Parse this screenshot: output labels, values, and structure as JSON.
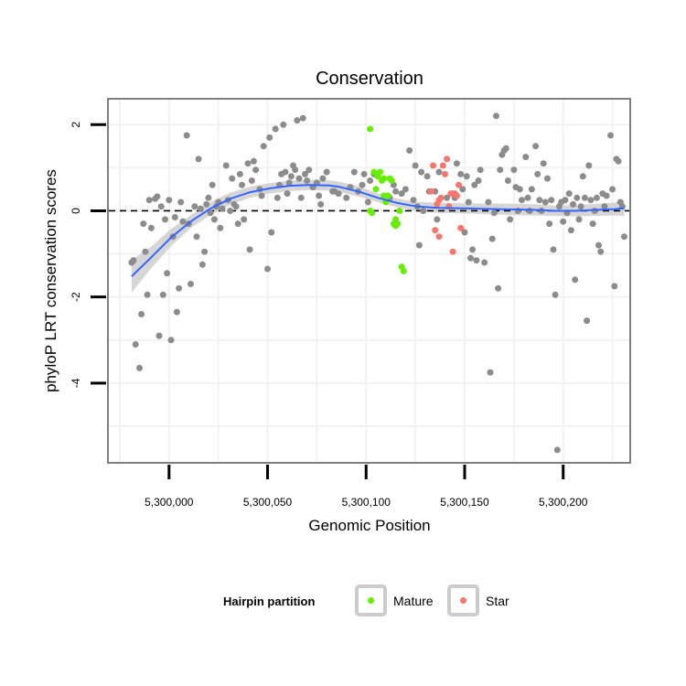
{
  "chart_data": {
    "type": "scatter",
    "title": "Conservation",
    "xlabel": "Genomic Position",
    "ylabel": "phyloP LRT conservation scores",
    "xlim": [
      5299969,
      5300234
    ],
    "ylim": [
      -5.85,
      2.6
    ],
    "x_ticks": [
      {
        "value": 5300000,
        "label": "5,300,000"
      },
      {
        "value": 5300050,
        "label": "5,300,050"
      },
      {
        "value": 5300100,
        "label": "5,300,100"
      },
      {
        "value": 5300150,
        "label": "5,300,150"
      },
      {
        "value": 5300200,
        "label": "5,300,200"
      }
    ],
    "y_ticks": [
      {
        "value": 2,
        "label": "2"
      },
      {
        "value": 0,
        "label": "0"
      },
      {
        "value": -2,
        "label": "-2"
      },
      {
        "value": -4,
        "label": "-4"
      }
    ],
    "reference_line": {
      "y": 0,
      "style": "dashed"
    },
    "colors": {
      "other": "#8c8c8c",
      "mature": "#66ee00",
      "star": "#f8766d",
      "smooth": "#3366ff",
      "ribbon": "#c8c8c8",
      "panel_border": "#7f7f7f",
      "grid": "#f2f2f2"
    },
    "legend": {
      "title": "Hairpin partition",
      "position": "bottom",
      "entries": [
        {
          "key": "mature",
          "label": "Mature"
        },
        {
          "key": "star",
          "label": "Star"
        }
      ]
    },
    "series": [
      {
        "name": "Other",
        "key": "other",
        "points": [
          [
            5299981,
            -1.2
          ],
          [
            5299982,
            -1.15
          ],
          [
            5299983,
            -3.1
          ],
          [
            5299985,
            -3.65
          ],
          [
            5299986,
            -2.4
          ],
          [
            5299987,
            -0.3
          ],
          [
            5299988,
            -0.95
          ],
          [
            5299989,
            -1.95
          ],
          [
            5299990,
            0.25
          ],
          [
            5299991,
            -0.4
          ],
          [
            5299993,
            0.28
          ],
          [
            5299994,
            0.33
          ],
          [
            5299995,
            -2.9
          ],
          [
            5299996,
            0.1
          ],
          [
            5299997,
            -1.95
          ],
          [
            5299998,
            -0.2
          ],
          [
            5299999,
            -1.45
          ],
          [
            5300000,
            0.25
          ],
          [
            5300001,
            -3.0
          ],
          [
            5300002,
            -0.6
          ],
          [
            5300003,
            -0.15
          ],
          [
            5300004,
            -2.35
          ],
          [
            5300005,
            -1.8
          ],
          [
            5300006,
            0.2
          ],
          [
            5300007,
            -0.25
          ],
          [
            5300009,
            1.75
          ],
          [
            5300010,
            -0.3
          ],
          [
            5300011,
            -1.7
          ],
          [
            5300013,
            0.1
          ],
          [
            5300014,
            -0.6
          ],
          [
            5300015,
            1.2
          ],
          [
            5300016,
            0.05
          ],
          [
            5300017,
            -1.25
          ],
          [
            5300018,
            -0.95
          ],
          [
            5300019,
            0.15
          ],
          [
            5300020,
            0.3
          ],
          [
            5300021,
            -0.05
          ],
          [
            5300022,
            0.6
          ],
          [
            5300023,
            -0.2
          ],
          [
            5300024,
            0.1
          ],
          [
            5300025,
            0.2
          ],
          [
            5300026,
            -0.4
          ],
          [
            5300027,
            0.05
          ],
          [
            5300029,
            1.05
          ],
          [
            5300030,
            0.25
          ],
          [
            5300031,
            0.0
          ],
          [
            5300032,
            0.75
          ],
          [
            5300033,
            0.15
          ],
          [
            5300034,
            0.1
          ],
          [
            5300035,
            -0.3
          ],
          [
            5300036,
            0.85
          ],
          [
            5300037,
            0.6
          ],
          [
            5300038,
            -0.2
          ],
          [
            5300040,
            1.1
          ],
          [
            5300041,
            -0.9
          ],
          [
            5300042,
            0.7
          ],
          [
            5300043,
            1.15
          ],
          [
            5300044,
            0.95
          ],
          [
            5300046,
            0.5
          ],
          [
            5300047,
            0.35
          ],
          [
            5300048,
            1.5
          ],
          [
            5300050,
            -1.35
          ],
          [
            5300051,
            1.7
          ],
          [
            5300052,
            -0.5
          ],
          [
            5300054,
            1.9
          ],
          [
            5300055,
            0.3
          ],
          [
            5300056,
            0.6
          ],
          [
            5300057,
            0.85
          ],
          [
            5300058,
            2.0
          ],
          [
            5300059,
            0.9
          ],
          [
            5300060,
            0.4
          ],
          [
            5300061,
            0.65
          ],
          [
            5300062,
            0.8
          ],
          [
            5300063,
            1.05
          ],
          [
            5300064,
            0.95
          ],
          [
            5300065,
            2.1
          ],
          [
            5300066,
            0.75
          ],
          [
            5300067,
            0.3
          ],
          [
            5300068,
            2.15
          ],
          [
            5300069,
            0.85
          ],
          [
            5300070,
            0.7
          ],
          [
            5300071,
            0.95
          ],
          [
            5300073,
            0.55
          ],
          [
            5300075,
            0.65
          ],
          [
            5300076,
            0.35
          ],
          [
            5300077,
            0.15
          ],
          [
            5300078,
            0.75
          ],
          [
            5300080,
            0.9
          ],
          [
            5300083,
            0.45
          ],
          [
            5300084,
            0.45
          ],
          [
            5300086,
            0.4
          ],
          [
            5300090,
            0.3
          ],
          [
            5300092,
            0.55
          ],
          [
            5300094,
            0.9
          ],
          [
            5300096,
            0.45
          ],
          [
            5300098,
            0.6
          ],
          [
            5300099,
            0.85
          ],
          [
            5300101,
            0.2
          ],
          [
            5300102,
            0.7
          ],
          [
            5300104,
            0.85
          ],
          [
            5300112,
            0.3
          ],
          [
            5300114,
            0.6
          ],
          [
            5300115,
            0.45
          ],
          [
            5300118,
            0.4
          ],
          [
            5300120,
            0.5
          ],
          [
            5300122,
            1.4
          ],
          [
            5300124,
            0.25
          ],
          [
            5300125,
            1.05
          ],
          [
            5300126,
            0.1
          ],
          [
            5300127,
            -0.8
          ],
          [
            5300128,
            0.9
          ],
          [
            5300129,
            0.0
          ],
          [
            5300131,
            0.8
          ],
          [
            5300132,
            0.45
          ],
          [
            5300135,
            0.45
          ],
          [
            5300136,
            -0.2
          ],
          [
            5300137,
            0.9
          ],
          [
            5300141,
            0.3
          ],
          [
            5300144,
            0.4
          ],
          [
            5300145,
            0.3
          ],
          [
            5300146,
            1.1
          ],
          [
            5300148,
            0.85
          ],
          [
            5300149,
            0.5
          ],
          [
            5300150,
            -0.5
          ],
          [
            5300151,
            0.8
          ],
          [
            5300152,
            0.2
          ],
          [
            5300153,
            -1.1
          ],
          [
            5300154,
            -0.9
          ],
          [
            5300155,
            0.6
          ],
          [
            5300156,
            -1.15
          ],
          [
            5300157,
            0.7
          ],
          [
            5300158,
            0.95
          ],
          [
            5300160,
            -1.2
          ],
          [
            5300162,
            0.2
          ],
          [
            5300163,
            -3.75
          ],
          [
            5300164,
            -0.65
          ],
          [
            5300165,
            -0.05
          ],
          [
            5300166,
            2.2
          ],
          [
            5300167,
            -1.8
          ],
          [
            5300168,
            0.95
          ],
          [
            5300169,
            1.3
          ],
          [
            5300170,
            1.4
          ],
          [
            5300171,
            1.45
          ],
          [
            5300172,
            0.7
          ],
          [
            5300173,
            -0.2
          ],
          [
            5300175,
            0.95
          ],
          [
            5300176,
            0.55
          ],
          [
            5300177,
            0.0
          ],
          [
            5300178,
            0.5
          ],
          [
            5300179,
            0.25
          ],
          [
            5300181,
            1.25
          ],
          [
            5300182,
            0.3
          ],
          [
            5300183,
            0.0
          ],
          [
            5300184,
            0.5
          ],
          [
            5300186,
            1.5
          ],
          [
            5300187,
            0.85
          ],
          [
            5300188,
            0.25
          ],
          [
            5300189,
            0.0
          ],
          [
            5300190,
            1.1
          ],
          [
            5300191,
            0.2
          ],
          [
            5300192,
            0.75
          ],
          [
            5300193,
            -0.3
          ],
          [
            5300194,
            0.25
          ],
          [
            5300195,
            -0.9
          ],
          [
            5300196,
            -1.95
          ],
          [
            5300197,
            -5.55
          ],
          [
            5300198,
            0.1
          ],
          [
            5300199,
            0.2
          ],
          [
            5300200,
            -0.25
          ],
          [
            5300201,
            0.25
          ],
          [
            5300202,
            -0.05
          ],
          [
            5300203,
            0.4
          ],
          [
            5300204,
            -0.45
          ],
          [
            5300205,
            0.15
          ],
          [
            5300206,
            -1.6
          ],
          [
            5300207,
            0.3
          ],
          [
            5300208,
            -0.2
          ],
          [
            5300209,
            0.1
          ],
          [
            5300210,
            0.8
          ],
          [
            5300211,
            0.3
          ],
          [
            5300212,
            -2.55
          ],
          [
            5300213,
            1.05
          ],
          [
            5300214,
            0.25
          ],
          [
            5300215,
            -0.3
          ],
          [
            5300216,
            0.0
          ],
          [
            5300217,
            0.3
          ],
          [
            5300218,
            -0.8
          ],
          [
            5300219,
            -0.95
          ],
          [
            5300220,
            0.4
          ],
          [
            5300221,
            0.1
          ],
          [
            5300222,
            0.35
          ],
          [
            5300224,
            1.75
          ],
          [
            5300225,
            0.5
          ],
          [
            5300226,
            -1.75
          ],
          [
            5300227,
            1.2
          ],
          [
            5300228,
            1.15
          ],
          [
            5300229,
            0.2
          ],
          [
            5300230,
            0.1
          ],
          [
            5300231,
            -0.6
          ]
        ]
      },
      {
        "name": "Mature",
        "key": "mature",
        "points": [
          [
            5300102,
            1.9
          ],
          [
            5300102,
            0.0
          ],
          [
            5300103,
            -0.05
          ],
          [
            5300104,
            0.9
          ],
          [
            5300105,
            0.5
          ],
          [
            5300106,
            0.8
          ],
          [
            5300107,
            0.9
          ],
          [
            5300108,
            0.7
          ],
          [
            5300109,
            0.35
          ],
          [
            5300109,
            0.75
          ],
          [
            5300110,
            0.2
          ],
          [
            5300111,
            0.35
          ],
          [
            5300112,
            0.75
          ],
          [
            5300113,
            0.7
          ],
          [
            5300114,
            -0.3
          ],
          [
            5300115,
            -0.2
          ],
          [
            5300115,
            -0.35
          ],
          [
            5300116,
            -0.3
          ],
          [
            5300117,
            0.0
          ],
          [
            5300118,
            -1.3
          ],
          [
            5300119,
            -1.4
          ]
        ]
      },
      {
        "name": "Star",
        "key": "star",
        "points": [
          [
            5300133,
            0.45
          ],
          [
            5300134,
            1.05
          ],
          [
            5300135,
            -0.45
          ],
          [
            5300136,
            0.15
          ],
          [
            5300137,
            0.25
          ],
          [
            5300137,
            -0.6
          ],
          [
            5300138,
            0.3
          ],
          [
            5300139,
            1.05
          ],
          [
            5300140,
            0.85
          ],
          [
            5300141,
            1.2
          ],
          [
            5300142,
            0.1
          ],
          [
            5300143,
            0.4
          ],
          [
            5300144,
            -0.95
          ],
          [
            5300145,
            0.4
          ],
          [
            5300146,
            0.35
          ],
          [
            5300147,
            0.6
          ],
          [
            5300148,
            -0.4
          ]
        ]
      }
    ],
    "smooth": {
      "method": "loess",
      "x": [
        5299981,
        5299991,
        5300001,
        5300011,
        5300021,
        5300031,
        5300041,
        5300051,
        5300061,
        5300071,
        5300081,
        5300086,
        5300096,
        5300106,
        5300116,
        5300126,
        5300136,
        5300146,
        5300156,
        5300166,
        5300176,
        5300186,
        5300196,
        5300206,
        5300216,
        5300226,
        5300231
      ],
      "y": [
        -1.52,
        -1.08,
        -0.62,
        -0.25,
        0.05,
        0.28,
        0.43,
        0.52,
        0.58,
        0.6,
        0.59,
        0.56,
        0.45,
        0.3,
        0.18,
        0.1,
        0.07,
        0.06,
        0.05,
        0.04,
        0.03,
        0.02,
        0.0,
        0.0,
        0.02,
        0.04,
        0.06
      ],
      "ci_lower": [
        -1.9,
        -1.33,
        -0.82,
        -0.4,
        -0.1,
        0.14,
        0.3,
        0.4,
        0.46,
        0.48,
        0.47,
        0.44,
        0.33,
        0.2,
        0.08,
        -0.01,
        -0.05,
        -0.06,
        -0.07,
        -0.09,
        -0.1,
        -0.11,
        -0.12,
        -0.13,
        -0.12,
        -0.11,
        -0.12
      ],
      "ci_upper": [
        -1.14,
        -0.83,
        -0.42,
        -0.1,
        0.2,
        0.42,
        0.56,
        0.64,
        0.7,
        0.72,
        0.71,
        0.68,
        0.57,
        0.4,
        0.28,
        0.21,
        0.19,
        0.18,
        0.17,
        0.17,
        0.16,
        0.15,
        0.12,
        0.13,
        0.16,
        0.19,
        0.24
      ]
    }
  }
}
